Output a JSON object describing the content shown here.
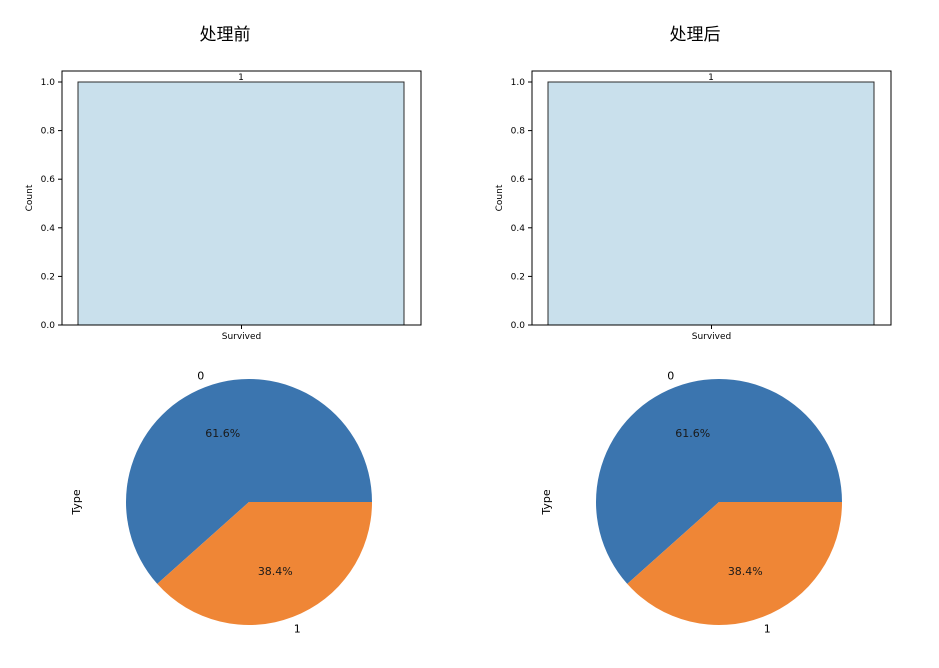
{
  "titles": {
    "left": "处理前",
    "right": "处理后"
  },
  "chart_data": [
    {
      "type": "bar",
      "panel": "left-top",
      "categories": [
        "Survived"
      ],
      "values": [
        1.0
      ],
      "bar_label": "1",
      "xlabel": "Survived",
      "ylabel": "Count",
      "ylim": [
        0,
        1.0
      ],
      "yticks": [
        "0.0",
        "0.2",
        "0.4",
        "0.6",
        "0.8",
        "1.0"
      ],
      "grid": false,
      "bar_color": "#c9e0ec"
    },
    {
      "type": "bar",
      "panel": "right-top",
      "categories": [
        "Survived"
      ],
      "values": [
        1.0
      ],
      "bar_label": "1",
      "xlabel": "Survived",
      "ylabel": "Count",
      "ylim": [
        0,
        1.0
      ],
      "yticks": [
        "0.0",
        "0.2",
        "0.4",
        "0.6",
        "0.8",
        "1.0"
      ],
      "grid": false,
      "bar_color": "#c9e0ec"
    },
    {
      "type": "pie",
      "panel": "left-bottom",
      "labels": [
        "0",
        "1"
      ],
      "values": [
        61.6,
        38.4
      ],
      "pct_labels": [
        "61.6%",
        "38.4%"
      ],
      "ylabel": "Type",
      "colors": [
        "#3b75af",
        "#ef8636"
      ]
    },
    {
      "type": "pie",
      "panel": "right-bottom",
      "labels": [
        "0",
        "1"
      ],
      "values": [
        61.6,
        38.4
      ],
      "pct_labels": [
        "61.6%",
        "38.4%"
      ],
      "ylabel": "Type",
      "colors": [
        "#3b75af",
        "#ef8636"
      ]
    }
  ]
}
